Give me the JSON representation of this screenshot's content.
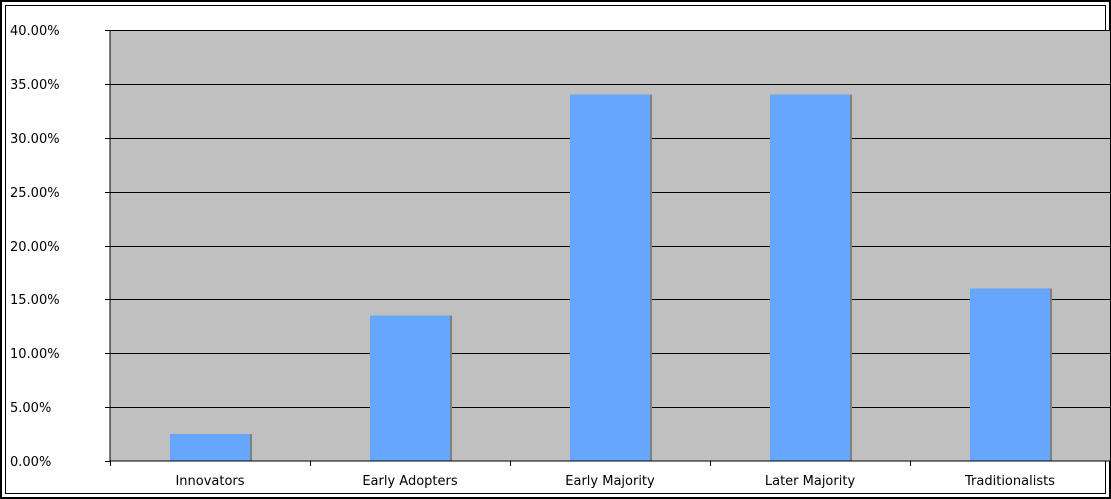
{
  "chart_data": {
    "type": "bar",
    "categories": [
      "Innovators",
      "Early Adopters",
      "Early Majority",
      "Later Majority",
      "Traditionalists"
    ],
    "values": [
      2.5,
      13.5,
      34.0,
      34.0,
      16.0
    ],
    "value_format": "percent",
    "ylim": [
      0,
      40
    ],
    "yticks": [
      0,
      5,
      10,
      15,
      20,
      25,
      30,
      35,
      40
    ],
    "ytick_labels": [
      "0.00%",
      "5.00%",
      "10.00%",
      "15.00%",
      "20.00%",
      "25.00%",
      "30.00%",
      "35.00%",
      "40.00%"
    ],
    "grid": true,
    "legend": "none",
    "title": "",
    "xlabel": "",
    "ylabel": "",
    "colors": {
      "bar_fill": "#66a6ff",
      "bar_shadow": "#7f7f7f",
      "plot_background": "#c0c0c0",
      "gridline": "#000000",
      "frame_border": "#000000"
    }
  }
}
